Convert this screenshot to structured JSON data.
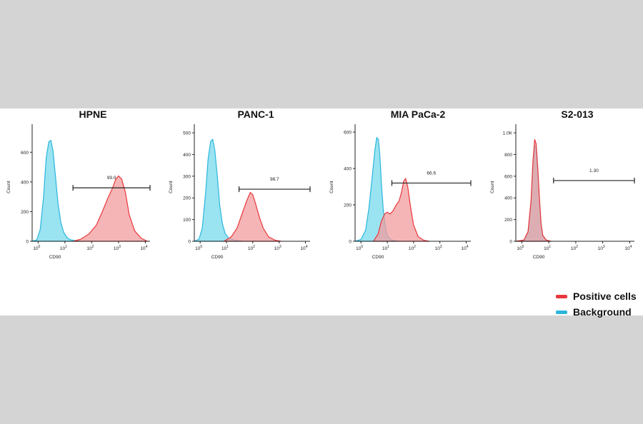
{
  "legend": [
    {
      "label": "Positive cells",
      "color": "#e8373c"
    },
    {
      "label": "Background",
      "color": "#2bb6dc"
    }
  ],
  "chart_data": [
    {
      "type": "area",
      "title": "HPNE",
      "xlabel": "CD90",
      "ylabel": "Count",
      "x_scale": "log",
      "xlim": [
        0.6,
        15000
      ],
      "ylim": [
        0,
        760
      ],
      "yticks": [
        0,
        200,
        400,
        600
      ],
      "yticklabels": [
        "0",
        "200",
        "400",
        "600"
      ],
      "xtick_labels": [
        "10^0",
        "10^1",
        "10^2",
        "10^3",
        "10^4"
      ],
      "gate": {
        "from": 20,
        "to": 15000,
        "y": 360,
        "label": "99.0"
      },
      "series": [
        {
          "name": "Background",
          "color": "#2bb6dc",
          "fill": "#8fe0ef",
          "x": [
            0.6,
            0.9,
            1.2,
            1.6,
            2.0,
            2.5,
            3.0,
            3.6,
            4.5,
            5.5,
            7,
            9,
            12,
            16,
            25,
            40
          ],
          "y": [
            0,
            10,
            80,
            300,
            560,
            670,
            680,
            610,
            430,
            260,
            130,
            60,
            25,
            10,
            4,
            0
          ]
        },
        {
          "name": "Positive cells",
          "color": "#e8373c",
          "fill": "#f19c9e",
          "x": [
            20,
            40,
            80,
            150,
            250,
            400,
            600,
            800,
            1000,
            1300,
            1800,
            2500,
            4000,
            7000,
            12000
          ],
          "y": [
            0,
            15,
            50,
            110,
            200,
            290,
            360,
            420,
            440,
            420,
            330,
            180,
            70,
            20,
            0
          ]
        }
      ]
    },
    {
      "type": "area",
      "title": "PANC-1",
      "xlabel": "CD90",
      "ylabel": "Count",
      "x_scale": "log",
      "xlim": [
        0.6,
        15000
      ],
      "ylim": [
        0,
        520
      ],
      "yticks": [
        0,
        100,
        200,
        300,
        400,
        500
      ],
      "yticklabels": [
        "0",
        "100",
        "200",
        "300",
        "400",
        "500"
      ],
      "xtick_labels": [
        "10^0",
        "10^1",
        "10^2",
        "10^3",
        "10^4"
      ],
      "gate": {
        "from": 30,
        "to": 15000,
        "y": 240,
        "label": "98.7"
      },
      "series": [
        {
          "name": "Background",
          "color": "#2bb6dc",
          "fill": "#8fe0ef",
          "x": [
            0.6,
            0.9,
            1.2,
            1.6,
            2.0,
            2.5,
            3.0,
            3.6,
            4.5,
            5.5,
            7,
            9,
            12,
            20,
            40
          ],
          "y": [
            0,
            10,
            60,
            220,
            380,
            460,
            470,
            420,
            300,
            170,
            80,
            35,
            15,
            5,
            0
          ]
        },
        {
          "name": "Positive cells",
          "color": "#e8373c",
          "fill": "#f19c9e",
          "x": [
            8,
            15,
            25,
            40,
            60,
            80,
            100,
            130,
            180,
            250,
            400,
            700,
            1200
          ],
          "y": [
            0,
            20,
            60,
            130,
            190,
            225,
            215,
            170,
            110,
            60,
            20,
            5,
            0
          ]
        }
      ]
    },
    {
      "type": "area",
      "title": "MIA PaCa-2",
      "xlabel": "CD90",
      "ylabel": "Count",
      "x_scale": "log",
      "xlim": [
        0.6,
        15000
      ],
      "ylim": [
        0,
        620
      ],
      "yticks": [
        0,
        200,
        400,
        600
      ],
      "yticklabels": [
        "0",
        "200",
        "400",
        "600"
      ],
      "xtick_labels": [
        "10^0",
        "10^1",
        "10^2",
        "10^3",
        "10^4"
      ],
      "gate": {
        "from": 15,
        "to": 15000,
        "y": 320,
        "label": "66.6"
      },
      "series": [
        {
          "name": "Background",
          "color": "#2bb6dc",
          "fill": "#8fe0ef",
          "x": [
            0.6,
            1.0,
            1.5,
            2.0,
            2.7,
            3.4,
            4.0,
            4.6,
            5.3,
            6.0,
            7.0,
            8.5,
            10,
            14,
            25
          ],
          "y": [
            0,
            10,
            60,
            180,
            360,
            500,
            570,
            560,
            460,
            320,
            180,
            80,
            30,
            8,
            0
          ]
        },
        {
          "name": "Positive cells",
          "color": "#e8373c",
          "fill": "#f19c9e",
          "x": [
            3,
            4.5,
            6,
            8,
            10,
            13,
            17,
            22,
            28,
            35,
            42,
            50,
            60,
            75,
            100,
            150,
            250,
            400
          ],
          "y": [
            0,
            40,
            110,
            150,
            160,
            150,
            170,
            200,
            220,
            270,
            330,
            345,
            300,
            200,
            90,
            25,
            5,
            0
          ]
        }
      ]
    },
    {
      "type": "area",
      "title": "S2-013",
      "xlabel": "CD90",
      "ylabel": "Count",
      "x_scale": "log",
      "xlim": [
        0.6,
        15000
      ],
      "ylim": [
        0,
        1040
      ],
      "yticks": [
        0,
        200,
        400,
        600,
        800,
        1000
      ],
      "yticklabels": [
        "0",
        "200",
        "400",
        "600",
        "800",
        "1.0K"
      ],
      "xtick_labels": [
        "10^0",
        "10^1",
        "10^2",
        "10^3",
        "10^4"
      ],
      "gate": {
        "from": 15,
        "to": 15000,
        "y": 560,
        "label": "1.30"
      },
      "series": [
        {
          "name": "Background",
          "color": "#2bb6dc",
          "fill": "#8fe0ef",
          "x": [
            0.6,
            1.2,
            1.7,
            2.2,
            2.6,
            3.0,
            3.4,
            3.9,
            4.5,
            5.2,
            6,
            8,
            12
          ],
          "y": [
            0,
            10,
            80,
            350,
            700,
            880,
            860,
            650,
            380,
            150,
            50,
            10,
            0
          ]
        },
        {
          "name": "Positive cells",
          "color": "#e8373c",
          "fill": "#f19c9e",
          "x": [
            0.6,
            1.2,
            1.7,
            2.2,
            2.6,
            3.0,
            3.4,
            3.9,
            4.5,
            5.2,
            6,
            8,
            12
          ],
          "y": [
            0,
            12,
            90,
            380,
            740,
            940,
            900,
            680,
            400,
            160,
            55,
            12,
            0
          ]
        }
      ]
    }
  ]
}
